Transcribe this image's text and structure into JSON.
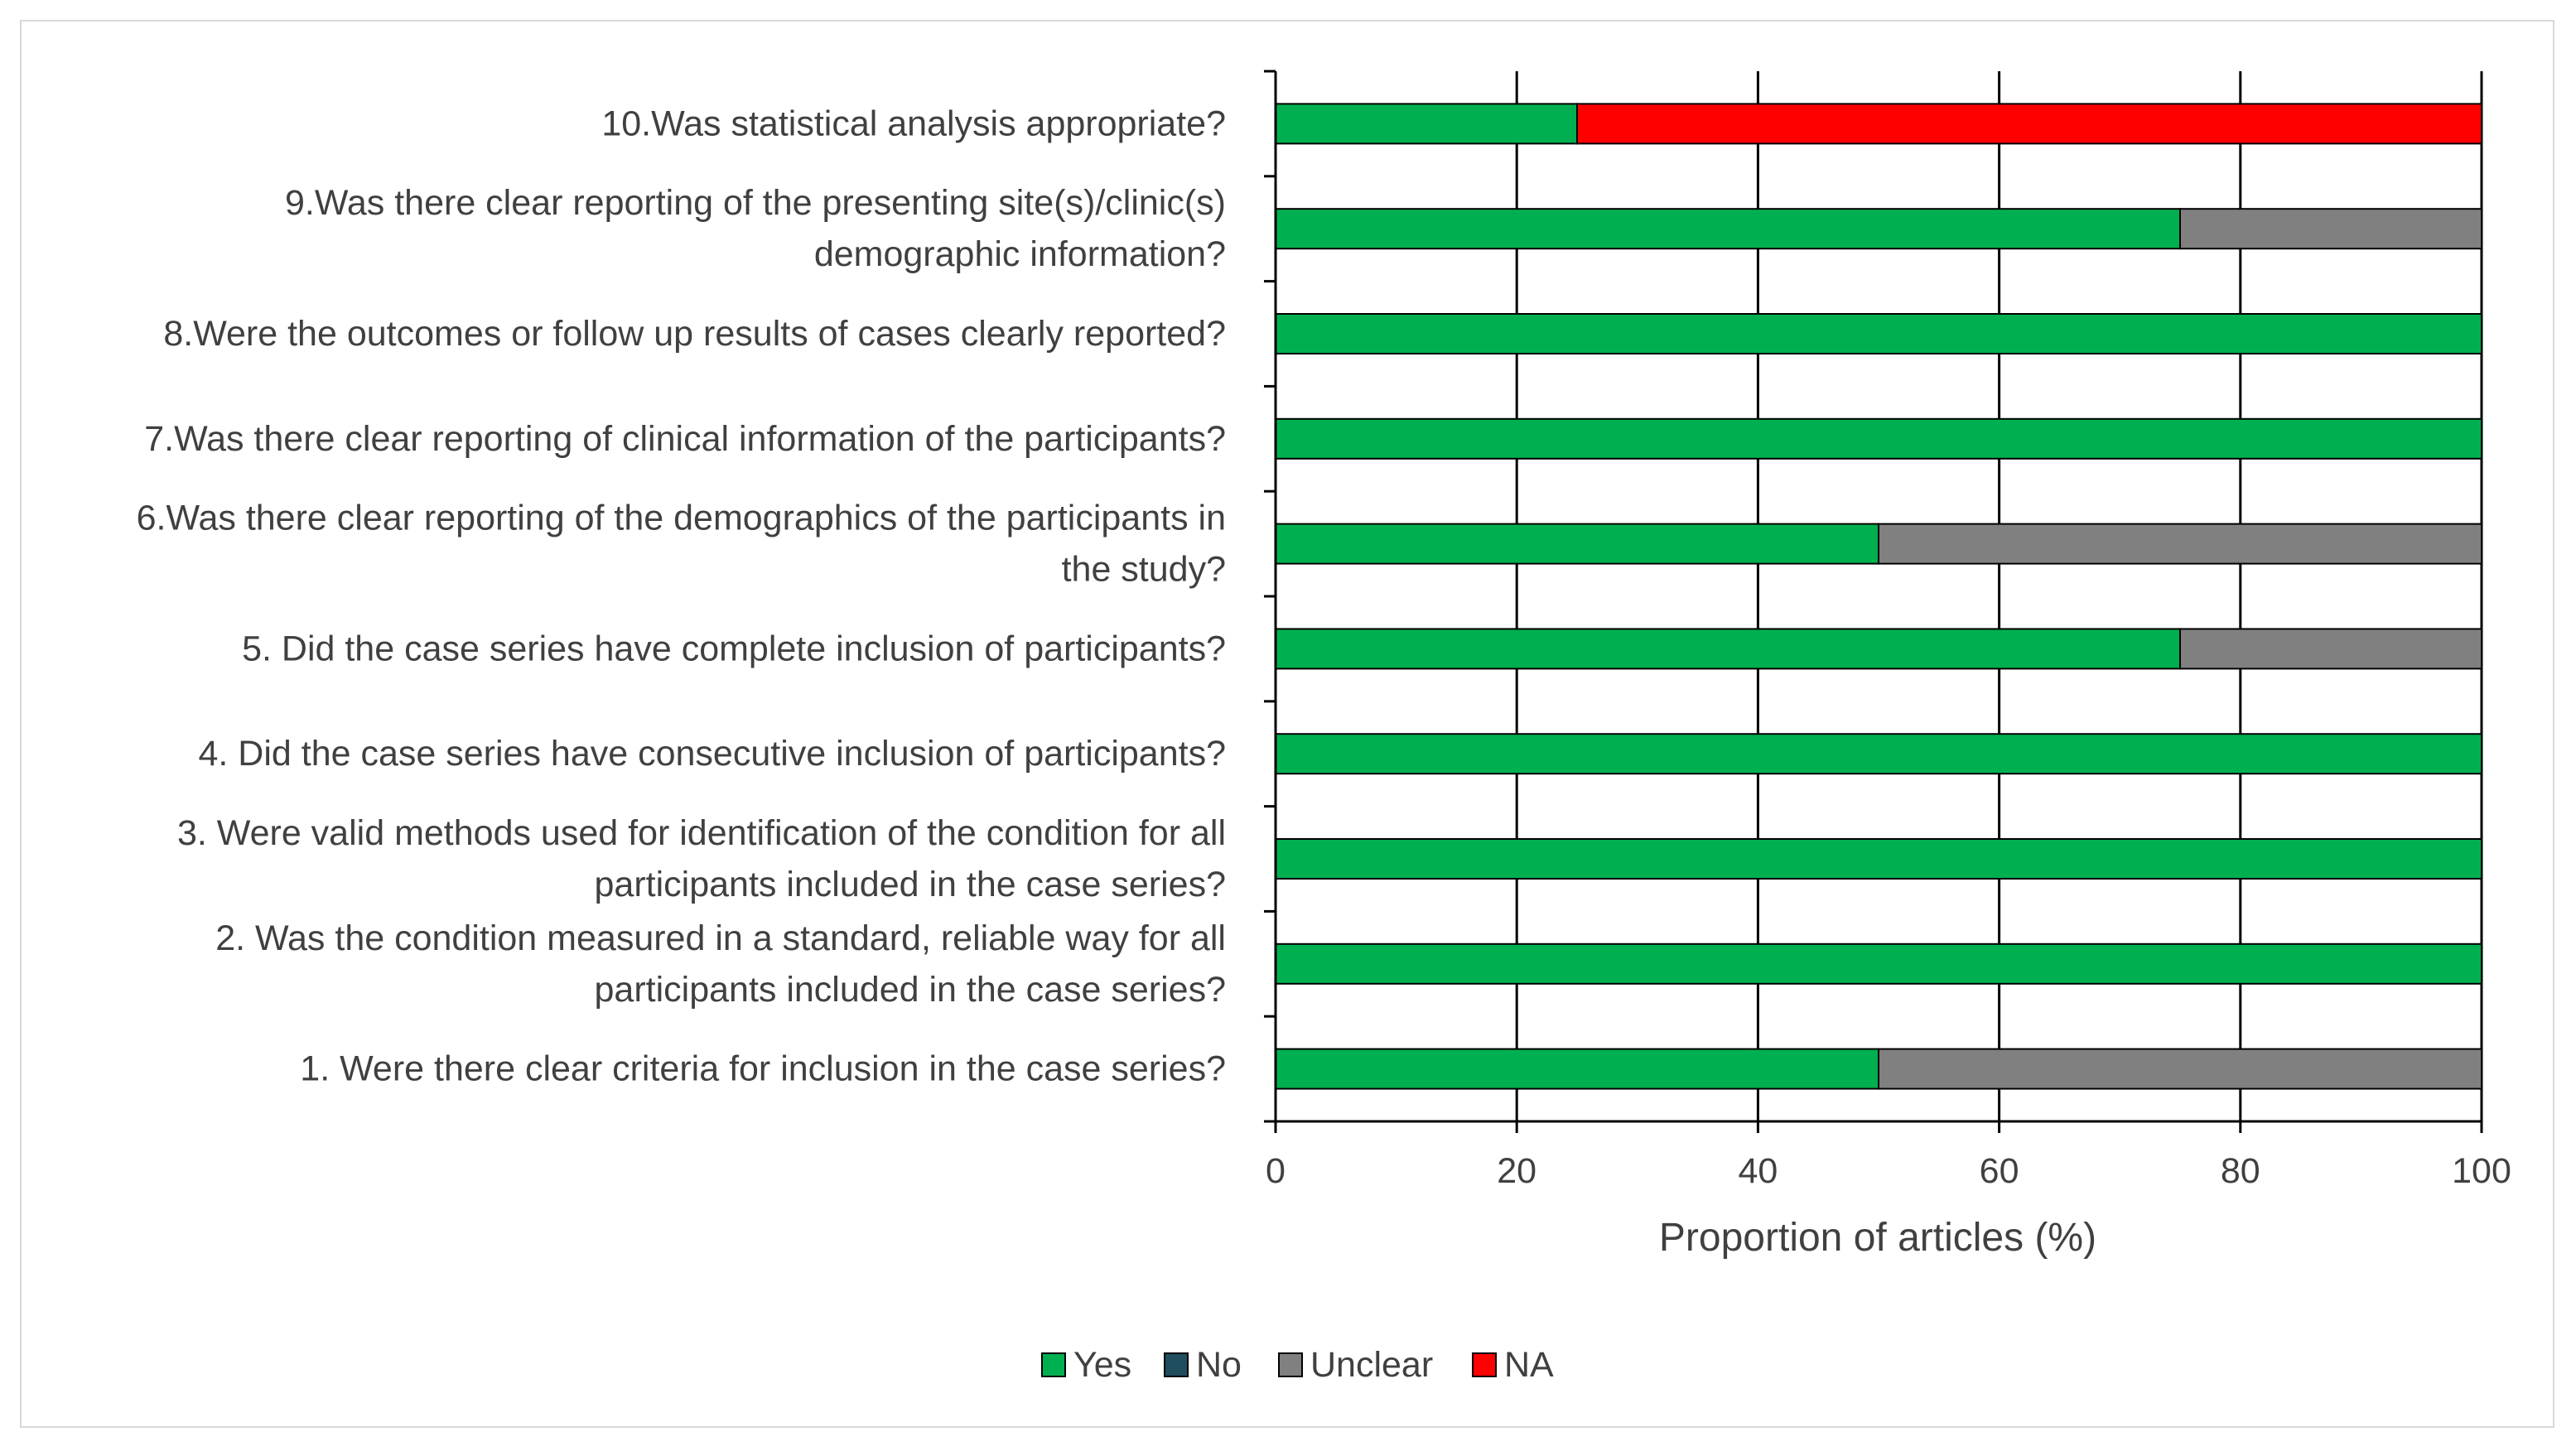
{
  "chart_data": {
    "type": "bar",
    "orientation": "horizontal",
    "stacked": true,
    "categories": [
      [
        "10.Was statistical analysis appropriate?"
      ],
      [
        "9.Was there clear reporting of the presenting site(s)/clinic(s)",
        "demographic information?"
      ],
      [
        "8.Were the outcomes or follow up results of cases clearly reported?"
      ],
      [
        "7.Was there clear reporting of clinical information of the participants?"
      ],
      [
        "6.Was there clear reporting of the demographics of the participants in",
        "the study?"
      ],
      [
        "5. Did the case series have complete inclusion of participants?"
      ],
      [
        "4. Did the case series have consecutive inclusion of participants?"
      ],
      [
        "3. Were valid methods used for identification of the condition for all",
        "participants included in the case series?"
      ],
      [
        "2. Was the condition measured in a standard, reliable way for all",
        "participants included in the case series?"
      ],
      [
        "1. Were there clear criteria for inclusion in the case series?"
      ]
    ],
    "series": [
      {
        "name": "Yes",
        "color": "#00b050",
        "values": [
          25,
          75,
          100,
          100,
          50,
          75,
          100,
          100,
          100,
          50
        ]
      },
      {
        "name": "No",
        "color": "#1f4e5f",
        "values": [
          0,
          0,
          0,
          0,
          0,
          0,
          0,
          0,
          0,
          0
        ]
      },
      {
        "name": "Unclear",
        "color": "#808080",
        "values": [
          0,
          25,
          0,
          0,
          50,
          25,
          0,
          0,
          0,
          50
        ]
      },
      {
        "name": "NA",
        "color": "#ff0000",
        "values": [
          75,
          0,
          0,
          0,
          0,
          0,
          0,
          0,
          0,
          0
        ]
      }
    ],
    "xlabel": "Proportion of articles (%)",
    "ylabel": "",
    "xlim": [
      0,
      100
    ],
    "xticks": [
      0,
      20,
      40,
      60,
      80,
      100
    ],
    "grid": "vertical",
    "legend": "bottom"
  }
}
